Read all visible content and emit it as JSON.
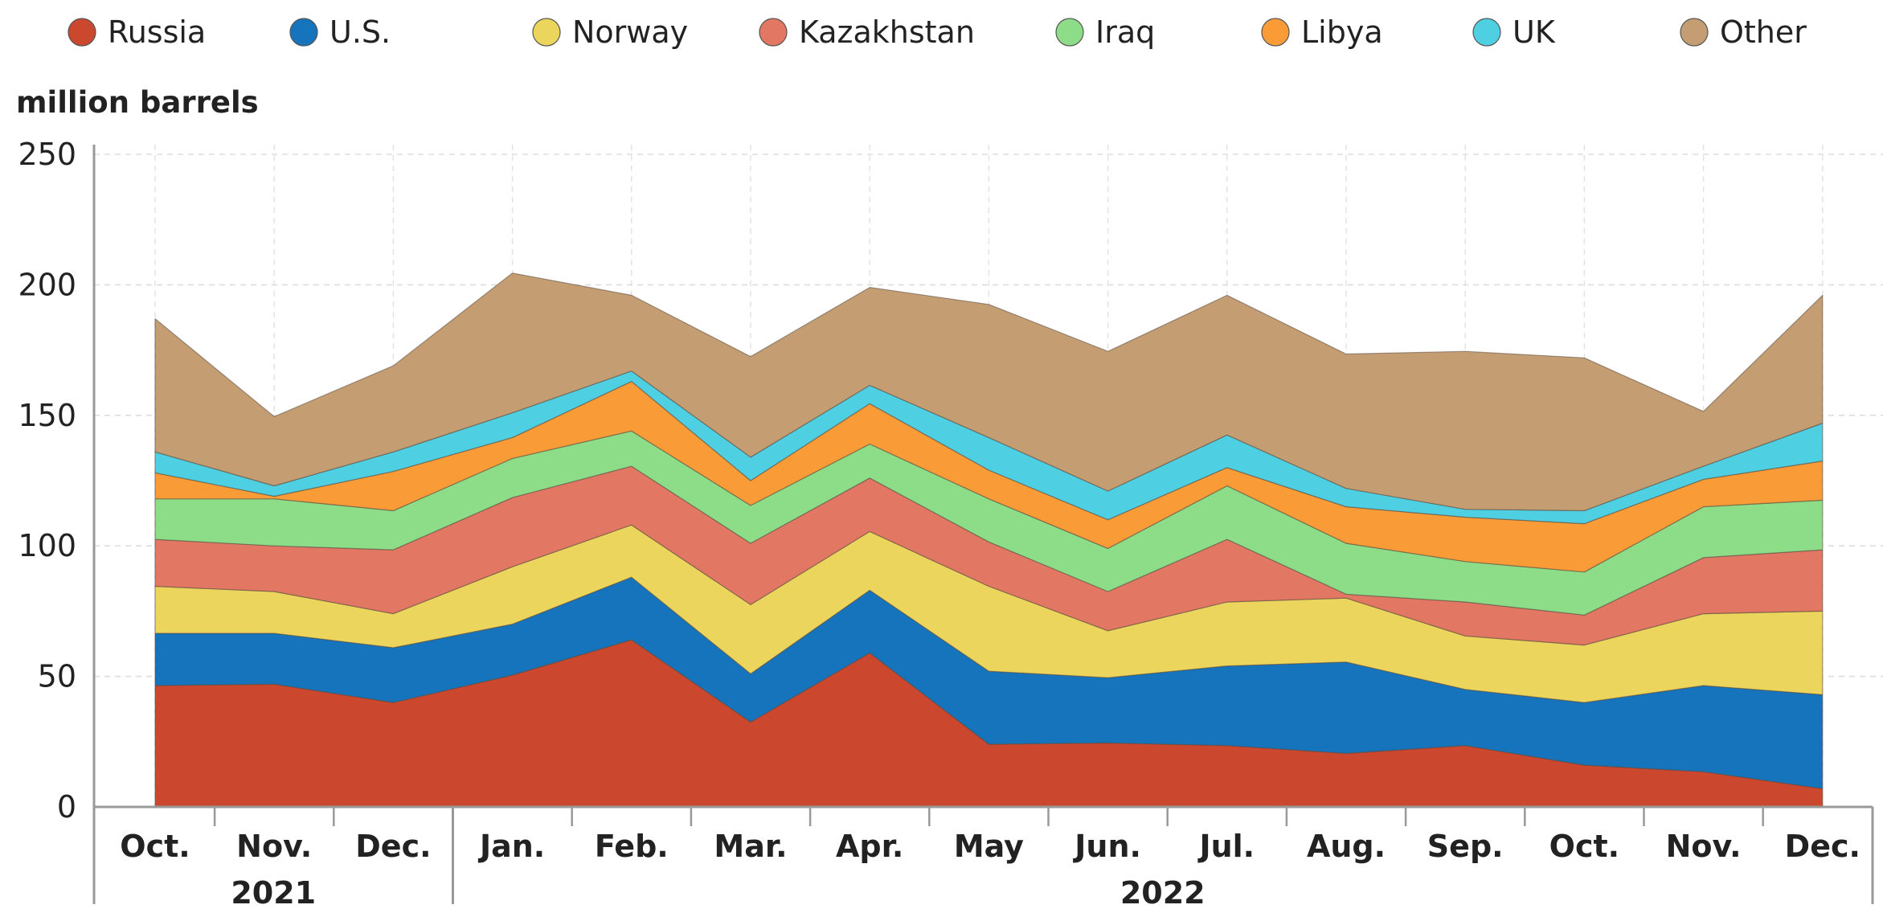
{
  "chart_data": {
    "type": "area",
    "stacked": true,
    "unit_label": "million barrels",
    "ylim": [
      0,
      250
    ],
    "yticks": [
      0,
      50,
      100,
      150,
      200,
      250
    ],
    "grid": true,
    "legend_position": "top",
    "categories": [
      "Oct.",
      "Nov.",
      "Dec.",
      "Jan.",
      "Feb.",
      "Mar.",
      "Apr.",
      "May",
      "Jun.",
      "Jul.",
      "Aug.",
      "Sep.",
      "Oct.",
      "Nov.",
      "Dec."
    ],
    "years": [
      {
        "label": "2021",
        "start": 0,
        "end": 2
      },
      {
        "label": "2022",
        "start": 3,
        "end": 14
      }
    ],
    "series": [
      {
        "name": "Russia",
        "color": "#cb472e",
        "values": [
          46.5,
          47,
          40,
          50.5,
          64,
          32.5,
          59,
          24,
          24.5,
          23.5,
          20.5,
          23.5,
          16,
          13.5,
          7
        ]
      },
      {
        "name": "U.S.",
        "color": "#1574bc",
        "values": [
          20,
          19.5,
          21,
          19.5,
          24,
          18.5,
          24,
          28,
          25,
          30.5,
          35,
          21.5,
          24,
          33,
          36
        ]
      },
      {
        "name": "Norway",
        "color": "#ecd55c",
        "values": [
          18,
          16,
          13,
          22,
          20,
          26.5,
          22.5,
          32.5,
          18,
          24.5,
          24.5,
          20.5,
          22,
          27.5,
          32
        ]
      },
      {
        "name": "Kazakhstan",
        "color": "#e27864",
        "values": [
          18,
          17.5,
          24.5,
          26.5,
          22.5,
          23.5,
          20.5,
          17,
          15,
          24,
          1.5,
          13,
          11.5,
          21.5,
          23.5
        ]
      },
      {
        "name": "Iraq",
        "color": "#8ddc88",
        "values": [
          15.5,
          18,
          15,
          15,
          13.5,
          14.5,
          13,
          16.5,
          16.5,
          20.5,
          19.5,
          15.5,
          16.5,
          19.5,
          19
        ]
      },
      {
        "name": "Libya",
        "color": "#f99b36",
        "values": [
          10,
          1,
          15,
          8,
          19,
          9.5,
          15.5,
          11,
          11,
          7,
          14,
          17,
          18.5,
          10.5,
          15
        ]
      },
      {
        "name": "UK",
        "color": "#4ecfe2",
        "values": [
          8,
          4,
          7.5,
          9.5,
          4,
          9,
          7,
          12.5,
          11,
          12.5,
          7,
          3,
          5,
          5,
          14.5
        ]
      },
      {
        "name": "Other",
        "color": "#c49e72",
        "values": [
          51,
          26.5,
          33,
          53.5,
          29,
          38.5,
          37.5,
          51,
          53.5,
          53.5,
          51.5,
          60.5,
          58.5,
          21,
          49
        ]
      }
    ]
  }
}
